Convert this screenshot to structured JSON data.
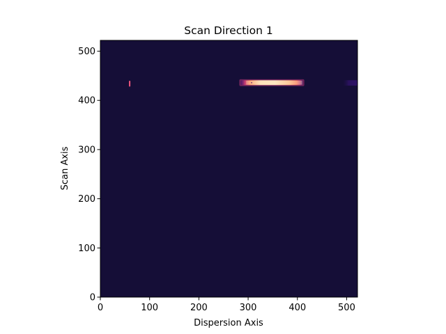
{
  "chart_data": {
    "type": "heatmap",
    "title": "Scan Direction 1",
    "xlabel": "Dispersion Axis",
    "ylabel": "Scan Axis",
    "xlim": [
      0,
      522
    ],
    "ylim": [
      0,
      522
    ],
    "xticks": [
      0,
      100,
      200,
      300,
      400,
      500
    ],
    "yticks": [
      0,
      100,
      200,
      300,
      400,
      500
    ],
    "colormap": "magma",
    "background_color": "#150e37",
    "grid": false,
    "legend": "none",
    "features": [
      {
        "name": "main spectral trace",
        "x_range": [
          282,
          414
        ],
        "y_range": [
          429,
          443
        ],
        "core_x_range": [
          296,
          410
        ],
        "core_y_range": [
          432,
          440
        ],
        "peak_color": "#fde7bf",
        "mid_color": "#fb8a5f",
        "edge_color": "#b73779"
      },
      {
        "name": "left compact source",
        "x_range": [
          58,
          61
        ],
        "y_range": [
          428,
          440
        ],
        "peak_color": "#e5527a"
      },
      {
        "name": "right edge faint source",
        "x_range": [
          492,
          522
        ],
        "y_range": [
          430,
          441
        ],
        "peak_color": "#2b1160"
      }
    ]
  }
}
